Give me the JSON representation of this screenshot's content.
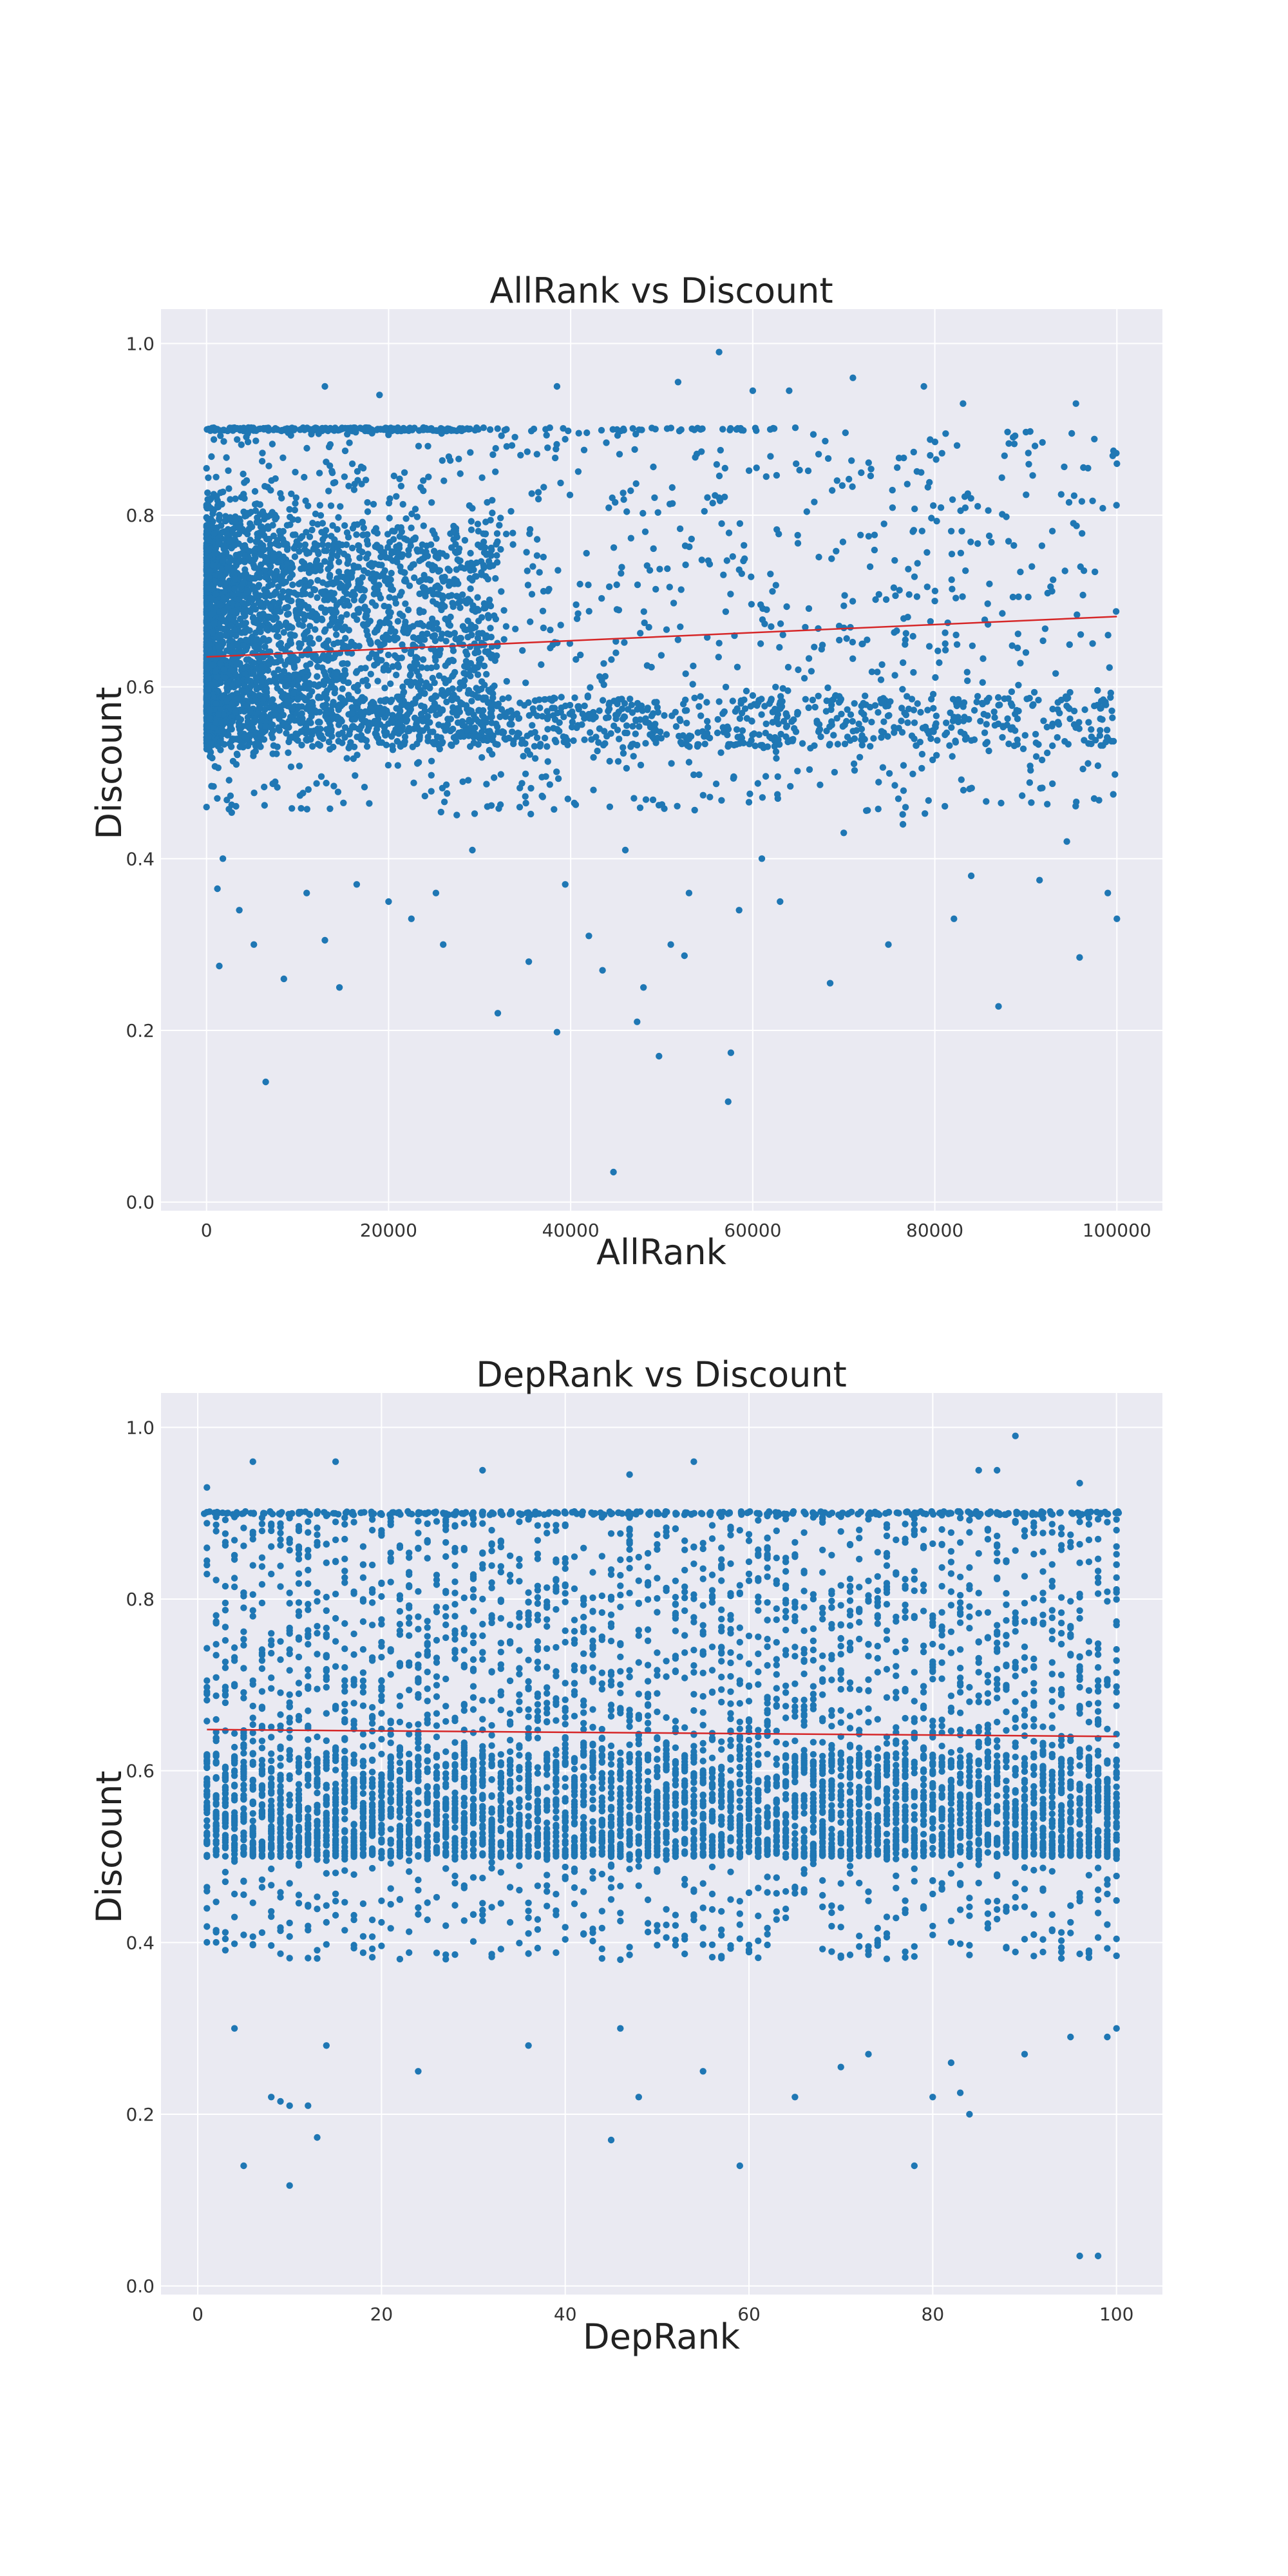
{
  "chart_data": [
    {
      "type": "scatter",
      "title": "AllRank vs Discount",
      "xlabel": "AllRank",
      "ylabel": "Discount",
      "xlim": [
        -5000,
        105000
      ],
      "ylim": [
        -0.01,
        1.04
      ],
      "xticks": [
        0,
        20000,
        40000,
        60000,
        80000,
        100000
      ],
      "xtick_labels": [
        "0",
        "20000",
        "40000",
        "60000",
        "80000",
        "100000"
      ],
      "yticks": [
        0.0,
        0.2,
        0.4,
        0.6,
        0.8,
        1.0
      ],
      "ytick_labels": [
        "0.0",
        "0.2",
        "0.4",
        "0.6",
        "0.8",
        "1.0"
      ],
      "grid": true,
      "marker_color": "#1f77b4",
      "trend_color": "#d62728",
      "trend_line": {
        "x": [
          0,
          100000
        ],
        "y": [
          0.635,
          0.682
        ]
      },
      "points": [
        [
          6500,
          0.14
        ],
        [
          44700,
          0.035
        ],
        [
          57300,
          0.117
        ],
        [
          57600,
          0.174
        ],
        [
          49700,
          0.17
        ],
        [
          47300,
          0.21
        ],
        [
          38500,
          0.198
        ],
        [
          32000,
          0.22
        ],
        [
          48000,
          0.25
        ],
        [
          87000,
          0.228
        ],
        [
          68500,
          0.255
        ],
        [
          95900,
          0.285
        ],
        [
          43500,
          0.27
        ],
        [
          42000,
          0.31
        ],
        [
          51000,
          0.3
        ],
        [
          74900,
          0.3
        ],
        [
          52500,
          0.287
        ],
        [
          35400,
          0.28
        ],
        [
          8500,
          0.26
        ],
        [
          14600,
          0.25
        ],
        [
          1400,
          0.275
        ],
        [
          13000,
          0.305
        ],
        [
          20000,
          0.35
        ],
        [
          22500,
          0.33
        ],
        [
          26000,
          0.3
        ],
        [
          58500,
          0.34
        ],
        [
          63000,
          0.35
        ],
        [
          82100,
          0.33
        ],
        [
          100000,
          0.33
        ],
        [
          99000,
          0.36
        ],
        [
          53000,
          0.36
        ],
        [
          39400,
          0.37
        ],
        [
          46000,
          0.41
        ],
        [
          61000,
          0.4
        ],
        [
          70000,
          0.43
        ],
        [
          76500,
          0.44
        ],
        [
          84000,
          0.38
        ],
        [
          91500,
          0.375
        ],
        [
          94500,
          0.42
        ],
        [
          97500,
          0.47
        ],
        [
          55000,
          0.56
        ],
        [
          60000,
          0.59
        ],
        [
          65000,
          0.62
        ],
        [
          72000,
          0.65
        ],
        [
          80000,
          0.7
        ],
        [
          86000,
          0.72
        ],
        [
          90000,
          0.64
        ],
        [
          96000,
          0.74
        ],
        [
          100000,
          0.86
        ],
        [
          56300,
          0.99
        ],
        [
          71000,
          0.96
        ],
        [
          78800,
          0.95
        ],
        [
          64000,
          0.945
        ],
        [
          51800,
          0.955
        ],
        [
          38500,
          0.95
        ],
        [
          13000,
          0.95
        ],
        [
          83100,
          0.93
        ],
        [
          95500,
          0.93
        ],
        [
          60000,
          0.945
        ],
        [
          19000,
          0.94
        ],
        [
          1200,
          0.365
        ],
        [
          1800,
          0.4
        ],
        [
          3600,
          0.34
        ],
        [
          5200,
          0.3
        ],
        [
          11000,
          0.36
        ],
        [
          16500,
          0.37
        ],
        [
          25200,
          0.36
        ],
        [
          29200,
          0.41
        ],
        [
          34400,
          0.46
        ],
        [
          42500,
          0.48
        ]
      ],
      "density_notes": "dense cluster at AllRank 0-30000 with Discount 0.45-0.90; horizontal band at Discount 0.90 for AllRank 0-65000"
    },
    {
      "type": "scatter",
      "title": "DepRank vs Discount",
      "xlabel": "DepRank",
      "ylabel": "Discount",
      "xlim": [
        -4,
        105
      ],
      "ylim": [
        -0.01,
        1.04
      ],
      "xticks": [
        0,
        20,
        40,
        60,
        80,
        100
      ],
      "xtick_labels": [
        "0",
        "20",
        "40",
        "60",
        "80",
        "100"
      ],
      "yticks": [
        0.0,
        0.2,
        0.4,
        0.6,
        0.8,
        1.0
      ],
      "ytick_labels": [
        "0.0",
        "0.2",
        "0.4",
        "0.6",
        "0.8",
        "1.0"
      ],
      "grid": true,
      "marker_color": "#1f77b4",
      "trend_color": "#d62728",
      "trend_line": {
        "x": [
          1,
          100
        ],
        "y": [
          0.648,
          0.64
        ]
      },
      "points": [
        [
          96,
          0.035
        ],
        [
          98,
          0.035
        ],
        [
          10,
          0.117
        ],
        [
          5,
          0.14
        ],
        [
          59,
          0.14
        ],
        [
          78,
          0.14
        ],
        [
          45,
          0.17
        ],
        [
          13,
          0.173
        ],
        [
          8,
          0.22
        ],
        [
          9,
          0.215
        ],
        [
          10,
          0.21
        ],
        [
          12,
          0.21
        ],
        [
          48,
          0.22
        ],
        [
          65,
          0.22
        ],
        [
          80,
          0.22
        ],
        [
          83,
          0.225
        ],
        [
          84,
          0.2
        ],
        [
          82,
          0.26
        ],
        [
          24,
          0.25
        ],
        [
          55,
          0.25
        ],
        [
          70,
          0.255
        ],
        [
          73,
          0.27
        ],
        [
          90,
          0.27
        ],
        [
          95,
          0.29
        ],
        [
          99,
          0.29
        ],
        [
          100,
          0.3
        ],
        [
          4,
          0.3
        ],
        [
          14,
          0.28
        ],
        [
          36,
          0.28
        ],
        [
          46,
          0.3
        ],
        [
          89,
          0.99
        ],
        [
          6,
          0.96
        ],
        [
          15,
          0.96
        ],
        [
          31,
          0.95
        ],
        [
          54,
          0.96
        ],
        [
          85,
          0.95
        ],
        [
          87,
          0.95
        ],
        [
          96,
          0.935
        ],
        [
          47,
          0.945
        ],
        [
          1,
          0.93
        ]
      ],
      "density_notes": "dense vertical columns of points at every integer DepRank 1-100 spanning Discount 0.48-0.90; horizontal band at Discount 0.90"
    }
  ]
}
